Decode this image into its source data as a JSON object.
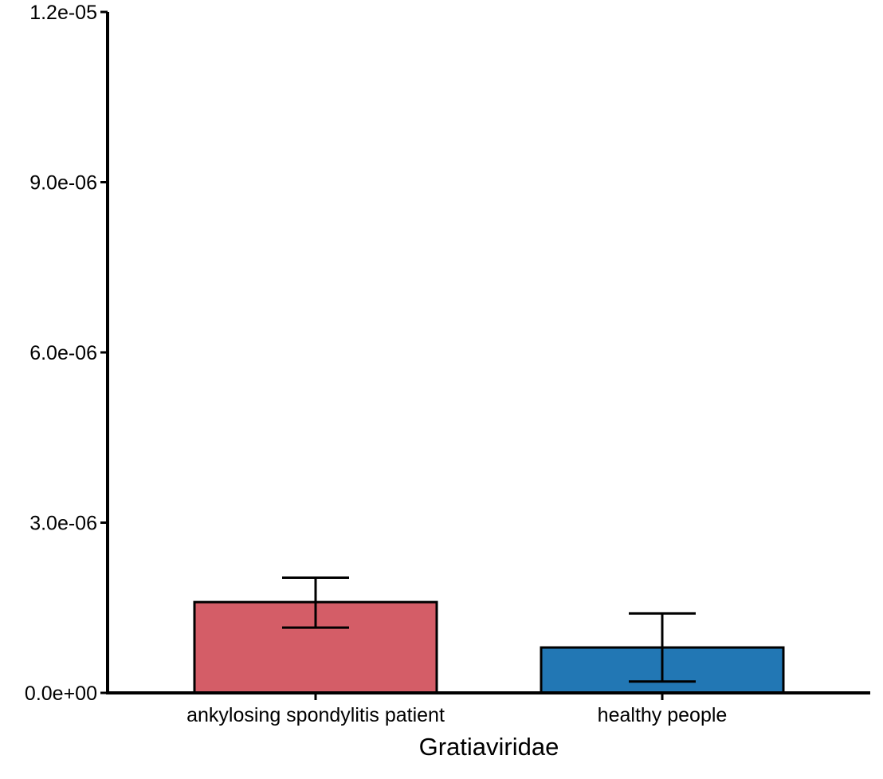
{
  "chart_data": {
    "type": "bar",
    "title": "",
    "xlabel": "Gratiaviridae",
    "ylabel": "",
    "categories": [
      "ankylosing spondylitis patient",
      "healthy people"
    ],
    "values": [
      1.6e-06,
      8e-07
    ],
    "error_low": [
      1.15e-06,
      2e-07
    ],
    "error_high": [
      2.03e-06,
      1.4e-06
    ],
    "ylim": [
      0,
      1.2e-05
    ],
    "yticks": [
      0,
      3e-06,
      6e-06,
      9e-06,
      1.2e-05
    ],
    "ytick_labels": [
      "0.0e+00",
      "3.0e-06",
      "6.0e-06",
      "9.0e-06",
      "1.2e-05"
    ],
    "colors": [
      "#D45D67",
      "#2277B4"
    ],
    "outline_color": "#000000",
    "grid": false,
    "legend": "none"
  }
}
